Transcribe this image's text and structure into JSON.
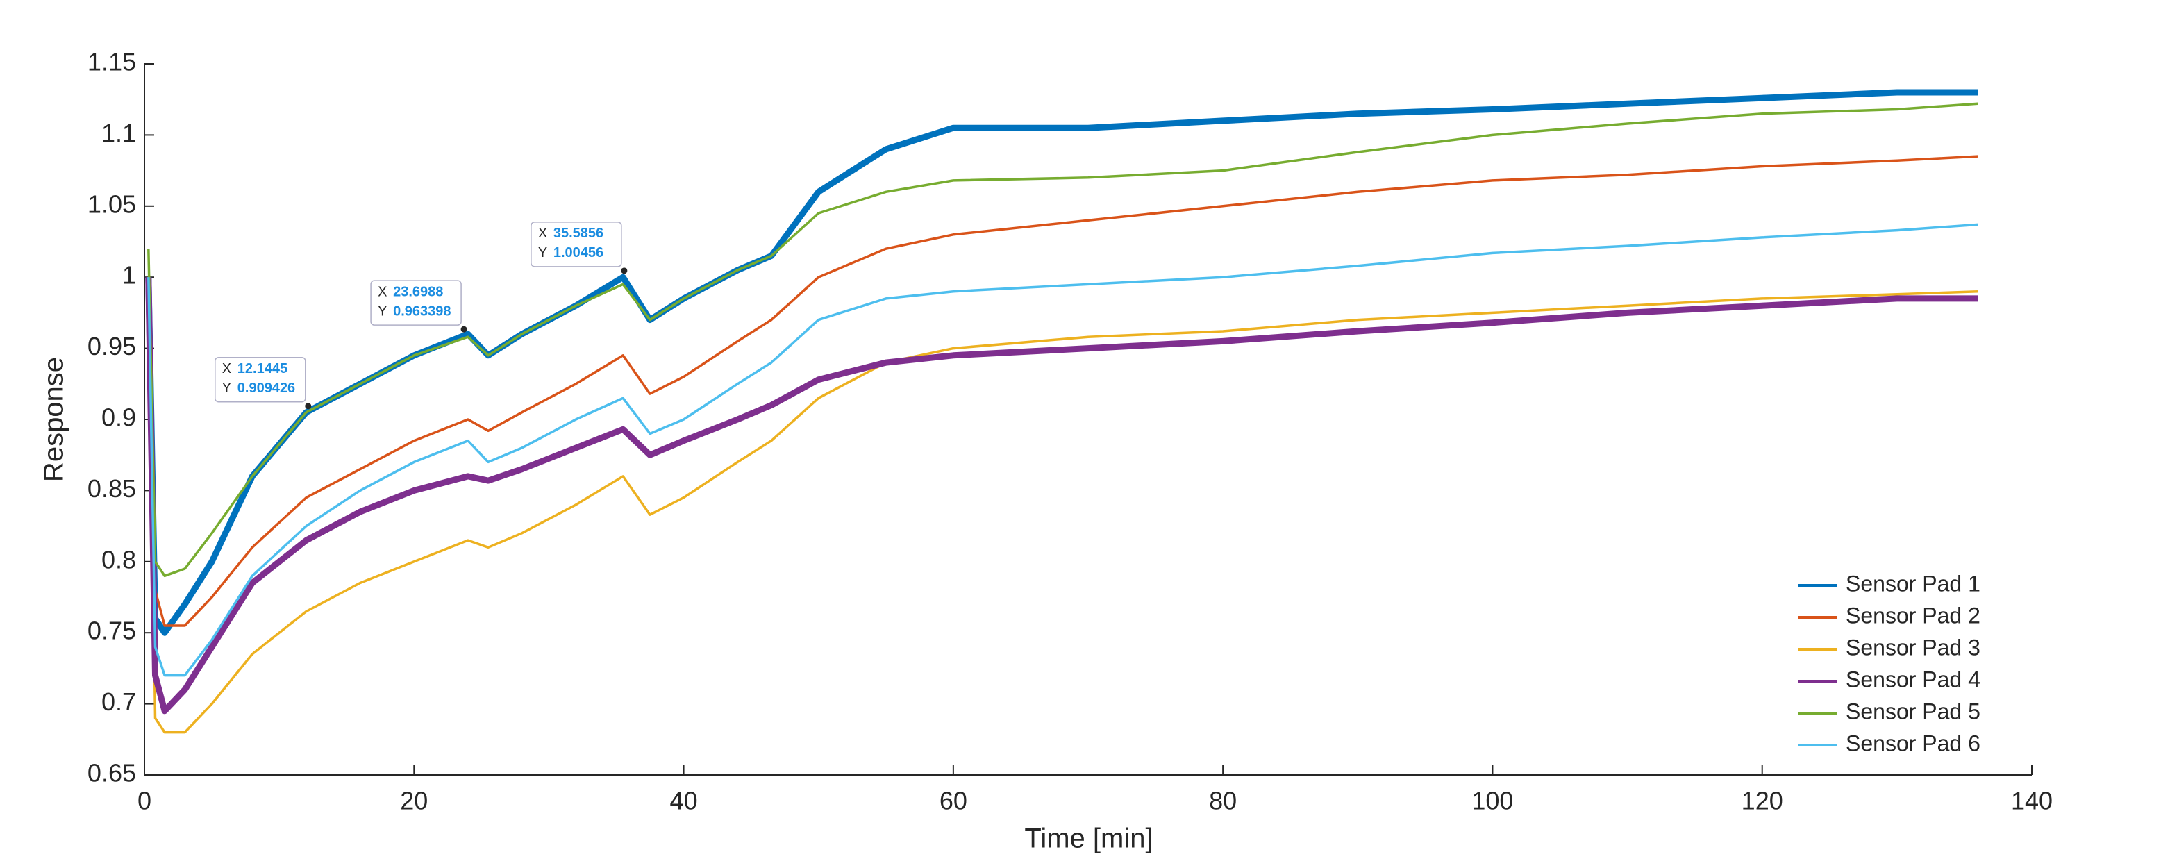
{
  "chart_data": {
    "type": "line",
    "xlabel": "Time [min]",
    "ylabel": "Response",
    "x": [
      0.3,
      0.8,
      1.5,
      3,
      5,
      8,
      12,
      16,
      20,
      24,
      25.5,
      28,
      32,
      35.5,
      37.5,
      40,
      44,
      46.5,
      50,
      55,
      60,
      70,
      80,
      90,
      100,
      110,
      120,
      130,
      136
    ],
    "series": [
      {
        "name": "Sensor Pad 1",
        "color": "#0072BD",
        "values": [
          1.0,
          0.76,
          0.75,
          0.77,
          0.8,
          0.86,
          0.905,
          0.925,
          0.945,
          0.96,
          0.945,
          0.96,
          0.98,
          1.0,
          0.97,
          0.985,
          1.005,
          1.015,
          1.06,
          1.09,
          1.105,
          1.105,
          1.11,
          1.115,
          1.118,
          1.122,
          1.126,
          1.13,
          1.13
        ]
      },
      {
        "name": "Sensor Pad 2",
        "color": "#D95319",
        "values": [
          1.0,
          0.78,
          0.755,
          0.755,
          0.775,
          0.81,
          0.845,
          0.865,
          0.885,
          0.9,
          0.892,
          0.905,
          0.925,
          0.945,
          0.918,
          0.93,
          0.955,
          0.97,
          1.0,
          1.02,
          1.03,
          1.04,
          1.05,
          1.06,
          1.068,
          1.072,
          1.078,
          1.082,
          1.085
        ]
      },
      {
        "name": "Sensor Pad 3",
        "color": "#EDB120",
        "values": [
          1.0,
          0.69,
          0.68,
          0.68,
          0.7,
          0.735,
          0.765,
          0.785,
          0.8,
          0.815,
          0.81,
          0.82,
          0.84,
          0.86,
          0.833,
          0.845,
          0.87,
          0.885,
          0.915,
          0.94,
          0.95,
          0.958,
          0.962,
          0.97,
          0.975,
          0.98,
          0.985,
          0.988,
          0.99
        ]
      },
      {
        "name": "Sensor Pad 4",
        "color": "#7E2F8E",
        "values": [
          1.0,
          0.72,
          0.695,
          0.71,
          0.74,
          0.785,
          0.815,
          0.835,
          0.85,
          0.86,
          0.857,
          0.865,
          0.88,
          0.893,
          0.875,
          0.885,
          0.9,
          0.91,
          0.928,
          0.94,
          0.945,
          0.95,
          0.955,
          0.962,
          0.968,
          0.975,
          0.98,
          0.985,
          0.985
        ]
      },
      {
        "name": "Sensor Pad 5",
        "color": "#77AC30",
        "values": [
          1.02,
          0.8,
          0.79,
          0.795,
          0.82,
          0.86,
          0.905,
          0.925,
          0.945,
          0.958,
          0.945,
          0.96,
          0.98,
          0.995,
          0.97,
          0.985,
          1.005,
          1.015,
          1.045,
          1.06,
          1.068,
          1.07,
          1.075,
          1.088,
          1.1,
          1.108,
          1.115,
          1.118,
          1.122
        ]
      },
      {
        "name": "Sensor Pad 6",
        "color": "#4DBEEE",
        "values": [
          1.0,
          0.74,
          0.72,
          0.72,
          0.745,
          0.79,
          0.825,
          0.85,
          0.87,
          0.885,
          0.87,
          0.88,
          0.9,
          0.915,
          0.89,
          0.9,
          0.925,
          0.94,
          0.97,
          0.985,
          0.99,
          0.995,
          1.0,
          1.008,
          1.017,
          1.022,
          1.028,
          1.033,
          1.037
        ]
      }
    ],
    "xlim": [
      0,
      140
    ],
    "xticks": [
      0,
      20,
      40,
      60,
      80,
      100,
      120,
      140
    ],
    "ylim": [
      0.65,
      1.15
    ],
    "yticks": [
      0.65,
      0.7,
      0.75,
      0.8,
      0.85,
      0.9,
      0.95,
      1,
      1.05,
      1.1,
      1.15
    ],
    "legend_location": "southeast",
    "data_tip_labels": [
      "X",
      "Y"
    ],
    "data_tips": [
      {
        "x": 12.1445,
        "y": 0.909426
      },
      {
        "x": 23.6988,
        "y": 0.963398
      },
      {
        "x": 35.5856,
        "y": 1.00456
      }
    ]
  }
}
